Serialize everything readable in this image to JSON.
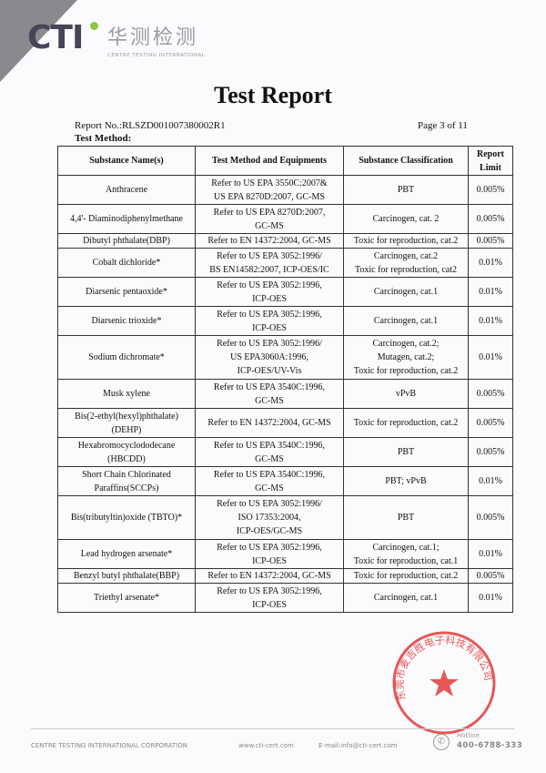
{
  "header": {
    "logo_text": "CTI",
    "logo_cn": "华测检测",
    "logo_en": "CENTRE TESTING INTERNATIONAL"
  },
  "title": "Test Report",
  "report_no": "Report No.:RLSZD001007380002R1",
  "page": "Page 3 of 11",
  "section": "Test Method:",
  "table": {
    "headers": [
      "Substance Name(s)",
      "Test Method and Equipments",
      "Substance Classification",
      "Report Limit"
    ],
    "rows": [
      {
        "name": [
          "Anthracene"
        ],
        "method": [
          "Refer to US EPA 3550C:2007&",
          "US EPA 8270D:2007, GC-MS"
        ],
        "cls": [
          "PBT"
        ],
        "limit": "0.005%"
      },
      {
        "name": [
          "4,4'- Diaminodiphenylmethane"
        ],
        "method": [
          "Refer to US EPA 8270D:2007,",
          "GC-MS"
        ],
        "cls": [
          "Carcinogen, cat. 2"
        ],
        "limit": "0.005%"
      },
      {
        "name": [
          "Dibutyl phthalate(DBP)"
        ],
        "method": [
          "Refer to EN 14372:2004, GC-MS"
        ],
        "cls": [
          "Toxic for reproduction, cat.2"
        ],
        "limit": "0.005%"
      },
      {
        "name": [
          "Cobalt dichloride*"
        ],
        "method": [
          "Refer to US EPA 3052:1996/",
          "BS EN14582:2007, ICP-OES/IC"
        ],
        "cls": [
          "Carcinogen, cat.2",
          "Toxic for reproduction, cat2"
        ],
        "limit": "0.01%"
      },
      {
        "name": [
          "Diarsenic pentaoxide*"
        ],
        "method": [
          "Refer to US EPA 3052:1996,",
          "ICP-OES"
        ],
        "cls": [
          "Carcinogen, cat.1"
        ],
        "limit": "0.01%"
      },
      {
        "name": [
          "Diarsenic trioxide*"
        ],
        "method": [
          "Refer to US EPA 3052:1996,",
          "ICP-OES"
        ],
        "cls": [
          "Carcinogen, cat.1"
        ],
        "limit": "0.01%"
      },
      {
        "name": [
          "Sodium dichromate*"
        ],
        "method": [
          "Refer to US EPA 3052:1996/",
          "US EPA3060A:1996,",
          "ICP-OES/UV-Vis"
        ],
        "cls": [
          "Carcinogen, cat.2;",
          "Mutagen, cat.2;",
          "Toxic for reproduction, cat.2"
        ],
        "limit": "0.01%"
      },
      {
        "name": [
          "Musk xylene"
        ],
        "method": [
          "Refer to US EPA 3540C:1996,",
          "GC-MS"
        ],
        "cls": [
          "vPvB"
        ],
        "limit": "0.005%"
      },
      {
        "name": [
          "Bis(2-ethyl(hexyl)phthalate)",
          "(DEHP)"
        ],
        "method": [
          "Refer to EN 14372:2004, GC-MS"
        ],
        "cls": [
          "Toxic for reproduction, cat.2"
        ],
        "limit": "0.005%"
      },
      {
        "name": [
          "Hexabromocyclododecane",
          "(HBCDD)"
        ],
        "method": [
          "Refer to US EPA 3540C:1996,",
          "GC-MS"
        ],
        "cls": [
          "PBT"
        ],
        "limit": "0.005%"
      },
      {
        "name": [
          "Short Chain Chlorinated",
          "Paraffins(SCCPs)"
        ],
        "method": [
          "Refer to US EPA 3540C:1996,",
          "GC-MS"
        ],
        "cls": [
          "PBT; vPvB"
        ],
        "limit": "0.01%"
      },
      {
        "name": [
          "Bis(tributyltin)oxide (TBTO)*"
        ],
        "method": [
          "Refer to US EPA 3052:1996/",
          "ISO 17353:2004,",
          "ICP-OES/GC-MS"
        ],
        "cls": [
          "PBT"
        ],
        "limit": "0.005%"
      },
      {
        "name": [
          "Lead hydrogen arsenate*"
        ],
        "method": [
          "Refer to US EPA 3052:1996,",
          "ICP-OES"
        ],
        "cls": [
          "Carcinogen, cat.1;",
          "Toxic for reproduction, cat.1"
        ],
        "limit": "0.01%"
      },
      {
        "name": [
          "Benzyl butyl phthalate(BBP)"
        ],
        "method": [
          "Refer to EN 14372:2004, GC-MS"
        ],
        "cls": [
          "Toxic for reproduction, cat.2"
        ],
        "limit": "0.005%"
      },
      {
        "name": [
          "Triethyl arsenate*"
        ],
        "method": [
          "Refer to US EPA 3052:1996,",
          "ICP-OES"
        ],
        "cls": [
          "Carcinogen, cat.1"
        ],
        "limit": "0.01%"
      }
    ]
  },
  "stamp": {
    "text": "东莞市麦吉胜电子科技有限公司",
    "color": "#e23a3a"
  },
  "footer": {
    "company": "CENTRE TESTING INTERNATIONAL CORPORATION",
    "website": "www.cti-cert.com",
    "email": "E-mail:info@cti-cert.com",
    "hotline_label": "Hotline",
    "hotline": "400-6788-333"
  }
}
